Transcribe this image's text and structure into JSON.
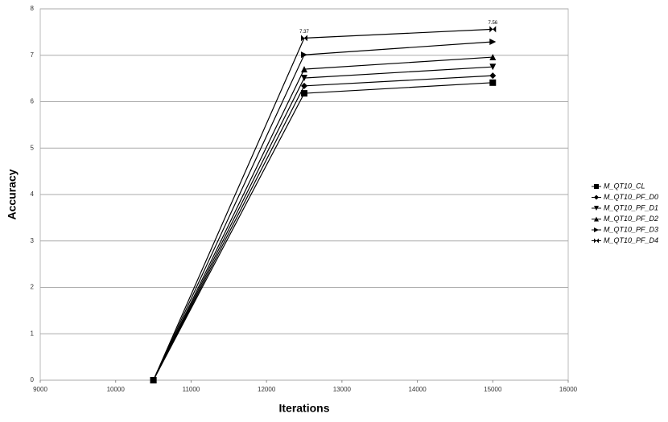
{
  "chart_data": {
    "type": "line",
    "x_label": "Iterations",
    "y_label": "Accuracy",
    "x": [
      10500,
      12500,
      15000
    ],
    "xlim": [
      9000,
      16000
    ],
    "xticks": [
      9000,
      10000,
      11000,
      12000,
      13000,
      14000,
      15000,
      16000
    ],
    "ylim": [
      0,
      8
    ],
    "yticks": [
      0,
      1,
      2,
      3,
      4,
      5,
      6,
      7,
      8
    ],
    "grid": true,
    "legend": "right",
    "series": [
      {
        "name": "M_QT10_CL",
        "color": "#000000",
        "marker": "square",
        "values": [
          0,
          6.18,
          6.41
        ]
      },
      {
        "name": "M_QT10_PF_D0",
        "color": "#000000",
        "marker": "diamond",
        "values": [
          0,
          6.34,
          6.56
        ]
      },
      {
        "name": "M_QT10_PF_D1",
        "color": "#000000",
        "marker": "triangle-down",
        "values": [
          0,
          6.51,
          6.75
        ]
      },
      {
        "name": "M_QT10_PF_D2",
        "color": "#000000",
        "marker": "triangle-up",
        "values": [
          0,
          6.7,
          6.96
        ]
      },
      {
        "name": "M_QT10_PF_D3",
        "color": "#000000",
        "marker": "triangle-right",
        "values": [
          0,
          7.01,
          7.29
        ]
      },
      {
        "name": "M_QT10_PF_D4",
        "color": "#000000",
        "marker": "bowtie",
        "values": [
          0,
          7.37,
          7.56
        ],
        "value_labels": [
          null,
          "7.37",
          "7.56"
        ]
      }
    ]
  }
}
